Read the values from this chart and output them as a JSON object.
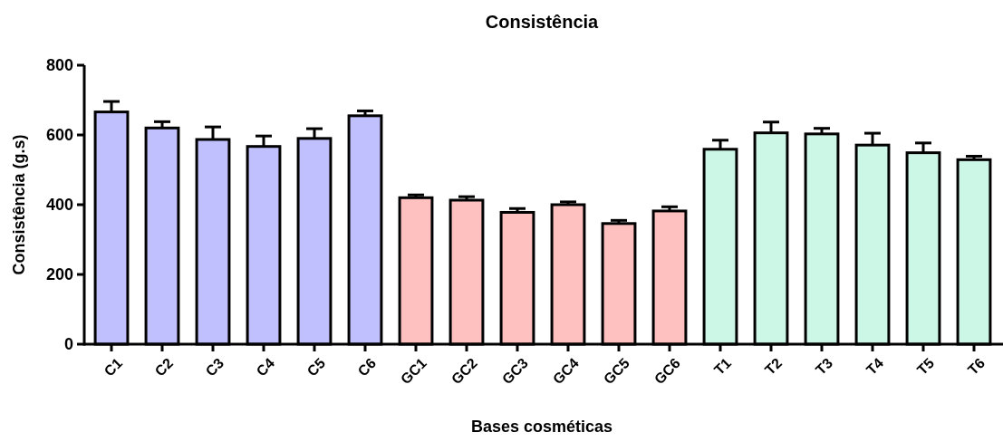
{
  "chart_data": {
    "type": "bar",
    "title": "Consistência",
    "xlabel": "Bases cosméticas",
    "ylabel": "Consistência (g.s)",
    "categories": [
      "C1",
      "C2",
      "C3",
      "C4",
      "C5",
      "C6",
      "GC1",
      "GC2",
      "GC3",
      "GC4",
      "GC5",
      "GC6",
      "T1",
      "T2",
      "T3",
      "T4",
      "T5",
      "T6"
    ],
    "values": [
      666,
      620,
      587,
      567,
      590,
      655,
      420,
      413,
      378,
      400,
      346,
      382,
      559,
      606,
      603,
      571,
      549,
      529
    ],
    "errors": [
      [
        666,
        696
      ],
      [
        620,
        638
      ],
      [
        587,
        623
      ],
      [
        567,
        597
      ],
      [
        590,
        618
      ],
      [
        655,
        669
      ],
      [
        420,
        428
      ],
      [
        413,
        423
      ],
      [
        378,
        389
      ],
      [
        400,
        408
      ],
      [
        346,
        355
      ],
      [
        382,
        394
      ],
      [
        559,
        585
      ],
      [
        606,
        637
      ],
      [
        603,
        619
      ],
      [
        571,
        605
      ],
      [
        549,
        577
      ],
      [
        529,
        539
      ]
    ],
    "colors": [
      "#c0c0ff",
      "#c0c0ff",
      "#c0c0ff",
      "#c0c0ff",
      "#c0c0ff",
      "#c0c0ff",
      "#ffc0c0",
      "#ffc0c0",
      "#ffc0c0",
      "#ffc0c0",
      "#ffc0c0",
      "#ffc0c0",
      "#ccf7e6",
      "#ccf7e6",
      "#ccf7e6",
      "#ccf7e6",
      "#ccf7e6",
      "#ccf7e6"
    ],
    "ylim": [
      0,
      800
    ],
    "yticks": [
      0,
      200,
      400,
      600,
      800
    ]
  }
}
